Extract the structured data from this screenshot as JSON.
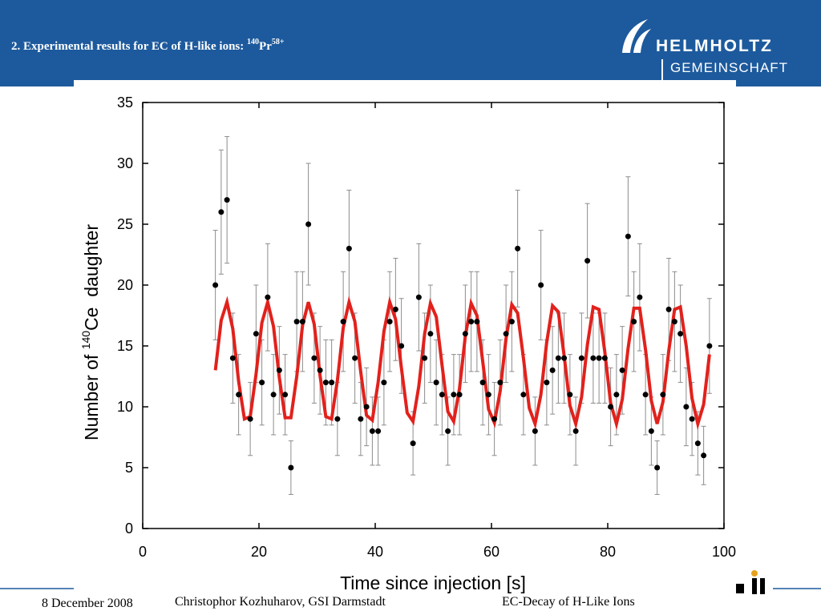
{
  "header": {
    "title": {
      "text": "2. Experimental results for EC of H-like ions: ",
      "mass": "140",
      "element": "Pr",
      "charge": "58+"
    },
    "logo": {
      "top": "HELMHOLTZ",
      "bottom": "GEMEINSCHAFT"
    }
  },
  "footer": {
    "date": "8 December 2008",
    "author": "Christophor Kozhuharov, GSI Darmstadt",
    "topic": "EC-Decay of H-Like Ions"
  },
  "chart_data": {
    "type": "scatter",
    "x_label": "Time since injection [s]",
    "y_label": {
      "before": "Number of ",
      "mass": "140",
      "after": "Ce  daughter"
    },
    "xlim": [
      0,
      100
    ],
    "xticks": [
      0,
      20,
      40,
      60,
      80,
      100
    ],
    "ylim": [
      0,
      35
    ],
    "yticks": [
      0,
      5,
      10,
      15,
      20,
      25,
      30,
      35
    ],
    "points": {
      "color": "#000000",
      "error_color": "#8c8c8c",
      "x": [
        12.5,
        13.5,
        14.5,
        15.5,
        16.5,
        18.5,
        19.5,
        20.5,
        21.5,
        22.5,
        23.5,
        24.5,
        25.5,
        26.5,
        27.5,
        28.5,
        29.5,
        30.5,
        31.5,
        32.5,
        33.5,
        34.5,
        35.5,
        36.5,
        37.5,
        38.5,
        39.5,
        40.5,
        41.5,
        42.5,
        43.5,
        44.5,
        46.5,
        47.5,
        48.5,
        49.5,
        50.5,
        51.5,
        52.5,
        53.5,
        54.5,
        55.5,
        56.5,
        57.5,
        58.5,
        59.5,
        60.5,
        61.5,
        62.5,
        63.5,
        64.5,
        65.5,
        67.5,
        68.5,
        69.5,
        70.5,
        71.5,
        72.5,
        73.5,
        74.5,
        75.5,
        76.5,
        77.5,
        78.5,
        79.5,
        80.5,
        81.5,
        82.5,
        83.5,
        84.5,
        85.5,
        86.5,
        87.5,
        88.5,
        89.5,
        90.5,
        91.5,
        92.5,
        93.5,
        94.5,
        95.5,
        96.5,
        97.5
      ],
      "values": [
        20,
        26,
        27,
        14,
        11,
        9,
        16,
        12,
        19,
        11,
        13,
        11,
        5,
        17,
        17,
        25,
        14,
        13,
        12,
        12,
        9,
        17,
        23,
        14,
        9,
        10,
        8,
        8,
        12,
        17,
        18,
        15,
        7,
        19,
        14,
        16,
        12,
        11,
        8,
        11,
        11,
        16,
        17,
        17,
        12,
        11,
        9,
        12,
        16,
        17,
        23,
        11,
        8,
        20,
        12,
        13,
        14,
        14,
        11,
        8,
        14,
        22,
        14,
        14,
        14,
        10,
        11,
        13,
        24,
        17,
        19,
        11,
        8,
        5,
        11,
        18,
        17,
        16,
        10,
        9,
        7,
        6,
        15
      ],
      "errors": [
        4.5,
        5.1,
        5.2,
        3.7,
        3.3,
        3,
        4,
        3.5,
        4.4,
        3.3,
        3.6,
        3.3,
        2.2,
        4.1,
        4.1,
        5,
        3.7,
        3.6,
        3.5,
        3.5,
        3,
        4.1,
        4.8,
        3.7,
        3,
        3.2,
        2.8,
        2.8,
        3.5,
        4.1,
        4.2,
        3.9,
        2.6,
        4.4,
        3.7,
        4,
        3.5,
        3.3,
        2.8,
        3.3,
        3.3,
        4,
        4.1,
        4.1,
        3.5,
        3.3,
        3,
        3.5,
        4,
        4.1,
        4.8,
        3.3,
        2.8,
        4.5,
        3.5,
        3.6,
        3.7,
        3.7,
        3.3,
        2.8,
        3.7,
        4.7,
        3.7,
        3.7,
        3.7,
        3.2,
        3.3,
        3.6,
        4.9,
        4.1,
        4.4,
        3.3,
        2.8,
        2.2,
        3.3,
        4.2,
        4.1,
        4,
        3.2,
        3,
        2.6,
        2.4,
        3.9
      ]
    },
    "fit": {
      "color": "#e2211c",
      "x": [
        12.5,
        13.5,
        14.5,
        15.5,
        16.5,
        17.5,
        18.5,
        19.5,
        20.5,
        21.5,
        22.5,
        23.5,
        24.5,
        25.5,
        26.5,
        27.5,
        28.5,
        29.5,
        30.5,
        31.5,
        32.5,
        33.5,
        34.5,
        35.5,
        36.5,
        37.5,
        38.5,
        39.5,
        40.5,
        41.5,
        42.5,
        43.5,
        44.5,
        45.5,
        46.5,
        47.5,
        48.5,
        49.5,
        50.5,
        51.5,
        52.5,
        53.5,
        54.5,
        55.5,
        56.5,
        57.5,
        58.5,
        59.5,
        60.5,
        61.5,
        62.5,
        63.5,
        64.5,
        65.5,
        66.5,
        67.5,
        68.5,
        69.5,
        70.5,
        71.5,
        72.5,
        73.5,
        74.5,
        75.5,
        76.5,
        77.5,
        78.5,
        79.5,
        80.5,
        81.5,
        82.5,
        83.5,
        84.5,
        85.5,
        86.5,
        87.5,
        88.5,
        89.5,
        90.5,
        91.5,
        92.5,
        93.5,
        94.5,
        95.5,
        96.5,
        97.5
      ],
      "values": [
        13.0,
        17.1,
        18.6,
        16.4,
        12.1,
        9.0,
        9.2,
        12.7,
        16.9,
        18.6,
        16.6,
        12.4,
        9.1,
        9.1,
        12.5,
        16.7,
        18.6,
        16.8,
        12.6,
        9.2,
        9.0,
        12.2,
        16.5,
        18.6,
        17.0,
        12.9,
        9.3,
        8.9,
        12.0,
        16.2,
        18.6,
        17.2,
        13.2,
        9.5,
        8.8,
        11.7,
        16.0,
        18.5,
        17.4,
        13.4,
        9.6,
        8.8,
        11.5,
        15.8,
        18.5,
        17.5,
        13.7,
        9.8,
        8.7,
        11.3,
        15.6,
        18.4,
        17.7,
        14.0,
        9.9,
        8.6,
        11.0,
        15.3,
        18.3,
        17.8,
        14.2,
        10.1,
        8.6,
        10.8,
        15.1,
        18.2,
        18.0,
        14.5,
        10.3,
        8.6,
        10.6,
        14.8,
        18.1,
        18.1,
        14.7,
        10.5,
        8.6,
        10.4,
        14.6,
        18.0,
        18.2,
        15.0,
        10.7,
        8.6,
        10.2,
        14.3
      ]
    }
  }
}
